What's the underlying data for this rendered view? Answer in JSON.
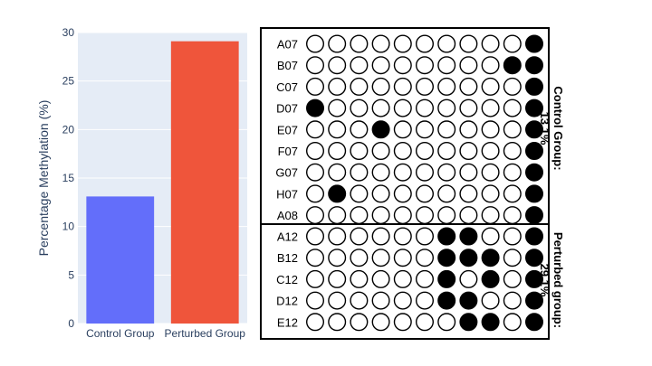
{
  "chart_data": [
    {
      "type": "bar",
      "categories": [
        "Control Group",
        "Perturbed Group"
      ],
      "values": [
        13.1,
        29.1
      ],
      "ylabel": "Percentage Methylation (%)",
      "ylim": [
        0,
        30
      ],
      "yticks": [
        0,
        5,
        10,
        15,
        20,
        25,
        30
      ],
      "grid": true,
      "colors": [
        "#636efa",
        "#ef553b"
      ],
      "plot_background": "#e5ecf6"
    },
    {
      "type": "table",
      "groups": [
        {
          "label_line1": "Control Group:",
          "label_line2": "13.1%",
          "rows": [
            {
              "name": "A07",
              "cells": [
                0,
                0,
                0,
                0,
                0,
                0,
                0,
                0,
                0,
                0,
                1
              ]
            },
            {
              "name": "B07",
              "cells": [
                0,
                0,
                0,
                0,
                0,
                0,
                0,
                0,
                0,
                1,
                1
              ]
            },
            {
              "name": "C07",
              "cells": [
                0,
                0,
                0,
                0,
                0,
                0,
                0,
                0,
                0,
                0,
                1
              ]
            },
            {
              "name": "D07",
              "cells": [
                1,
                0,
                0,
                0,
                0,
                0,
                0,
                0,
                0,
                0,
                1
              ]
            },
            {
              "name": "E07",
              "cells": [
                0,
                0,
                0,
                1,
                0,
                0,
                0,
                0,
                0,
                0,
                1
              ]
            },
            {
              "name": "F07",
              "cells": [
                0,
                0,
                0,
                0,
                0,
                0,
                0,
                0,
                0,
                0,
                1
              ]
            },
            {
              "name": "G07",
              "cells": [
                0,
                0,
                0,
                0,
                0,
                0,
                0,
                0,
                0,
                0,
                1
              ]
            },
            {
              "name": "H07",
              "cells": [
                0,
                1,
                0,
                0,
                0,
                0,
                0,
                0,
                0,
                0,
                1
              ]
            },
            {
              "name": "A08",
              "cells": [
                0,
                0,
                0,
                0,
                0,
                0,
                0,
                0,
                0,
                0,
                1
              ]
            }
          ]
        },
        {
          "label_line1": "Perturbed group:",
          "label_line2": "29.1%",
          "rows": [
            {
              "name": "A12",
              "cells": [
                0,
                0,
                0,
                0,
                0,
                0,
                1,
                1,
                0,
                0,
                1
              ]
            },
            {
              "name": "B12",
              "cells": [
                0,
                0,
                0,
                0,
                0,
                0,
                1,
                1,
                1,
                0,
                1
              ]
            },
            {
              "name": "C12",
              "cells": [
                0,
                0,
                0,
                0,
                0,
                0,
                1,
                0,
                1,
                0,
                1
              ]
            },
            {
              "name": "D12",
              "cells": [
                0,
                0,
                0,
                0,
                0,
                0,
                1,
                1,
                0,
                0,
                1
              ]
            },
            {
              "name": "E12",
              "cells": [
                0,
                0,
                0,
                0,
                0,
                0,
                0,
                1,
                1,
                0,
                1
              ]
            }
          ]
        }
      ]
    }
  ]
}
